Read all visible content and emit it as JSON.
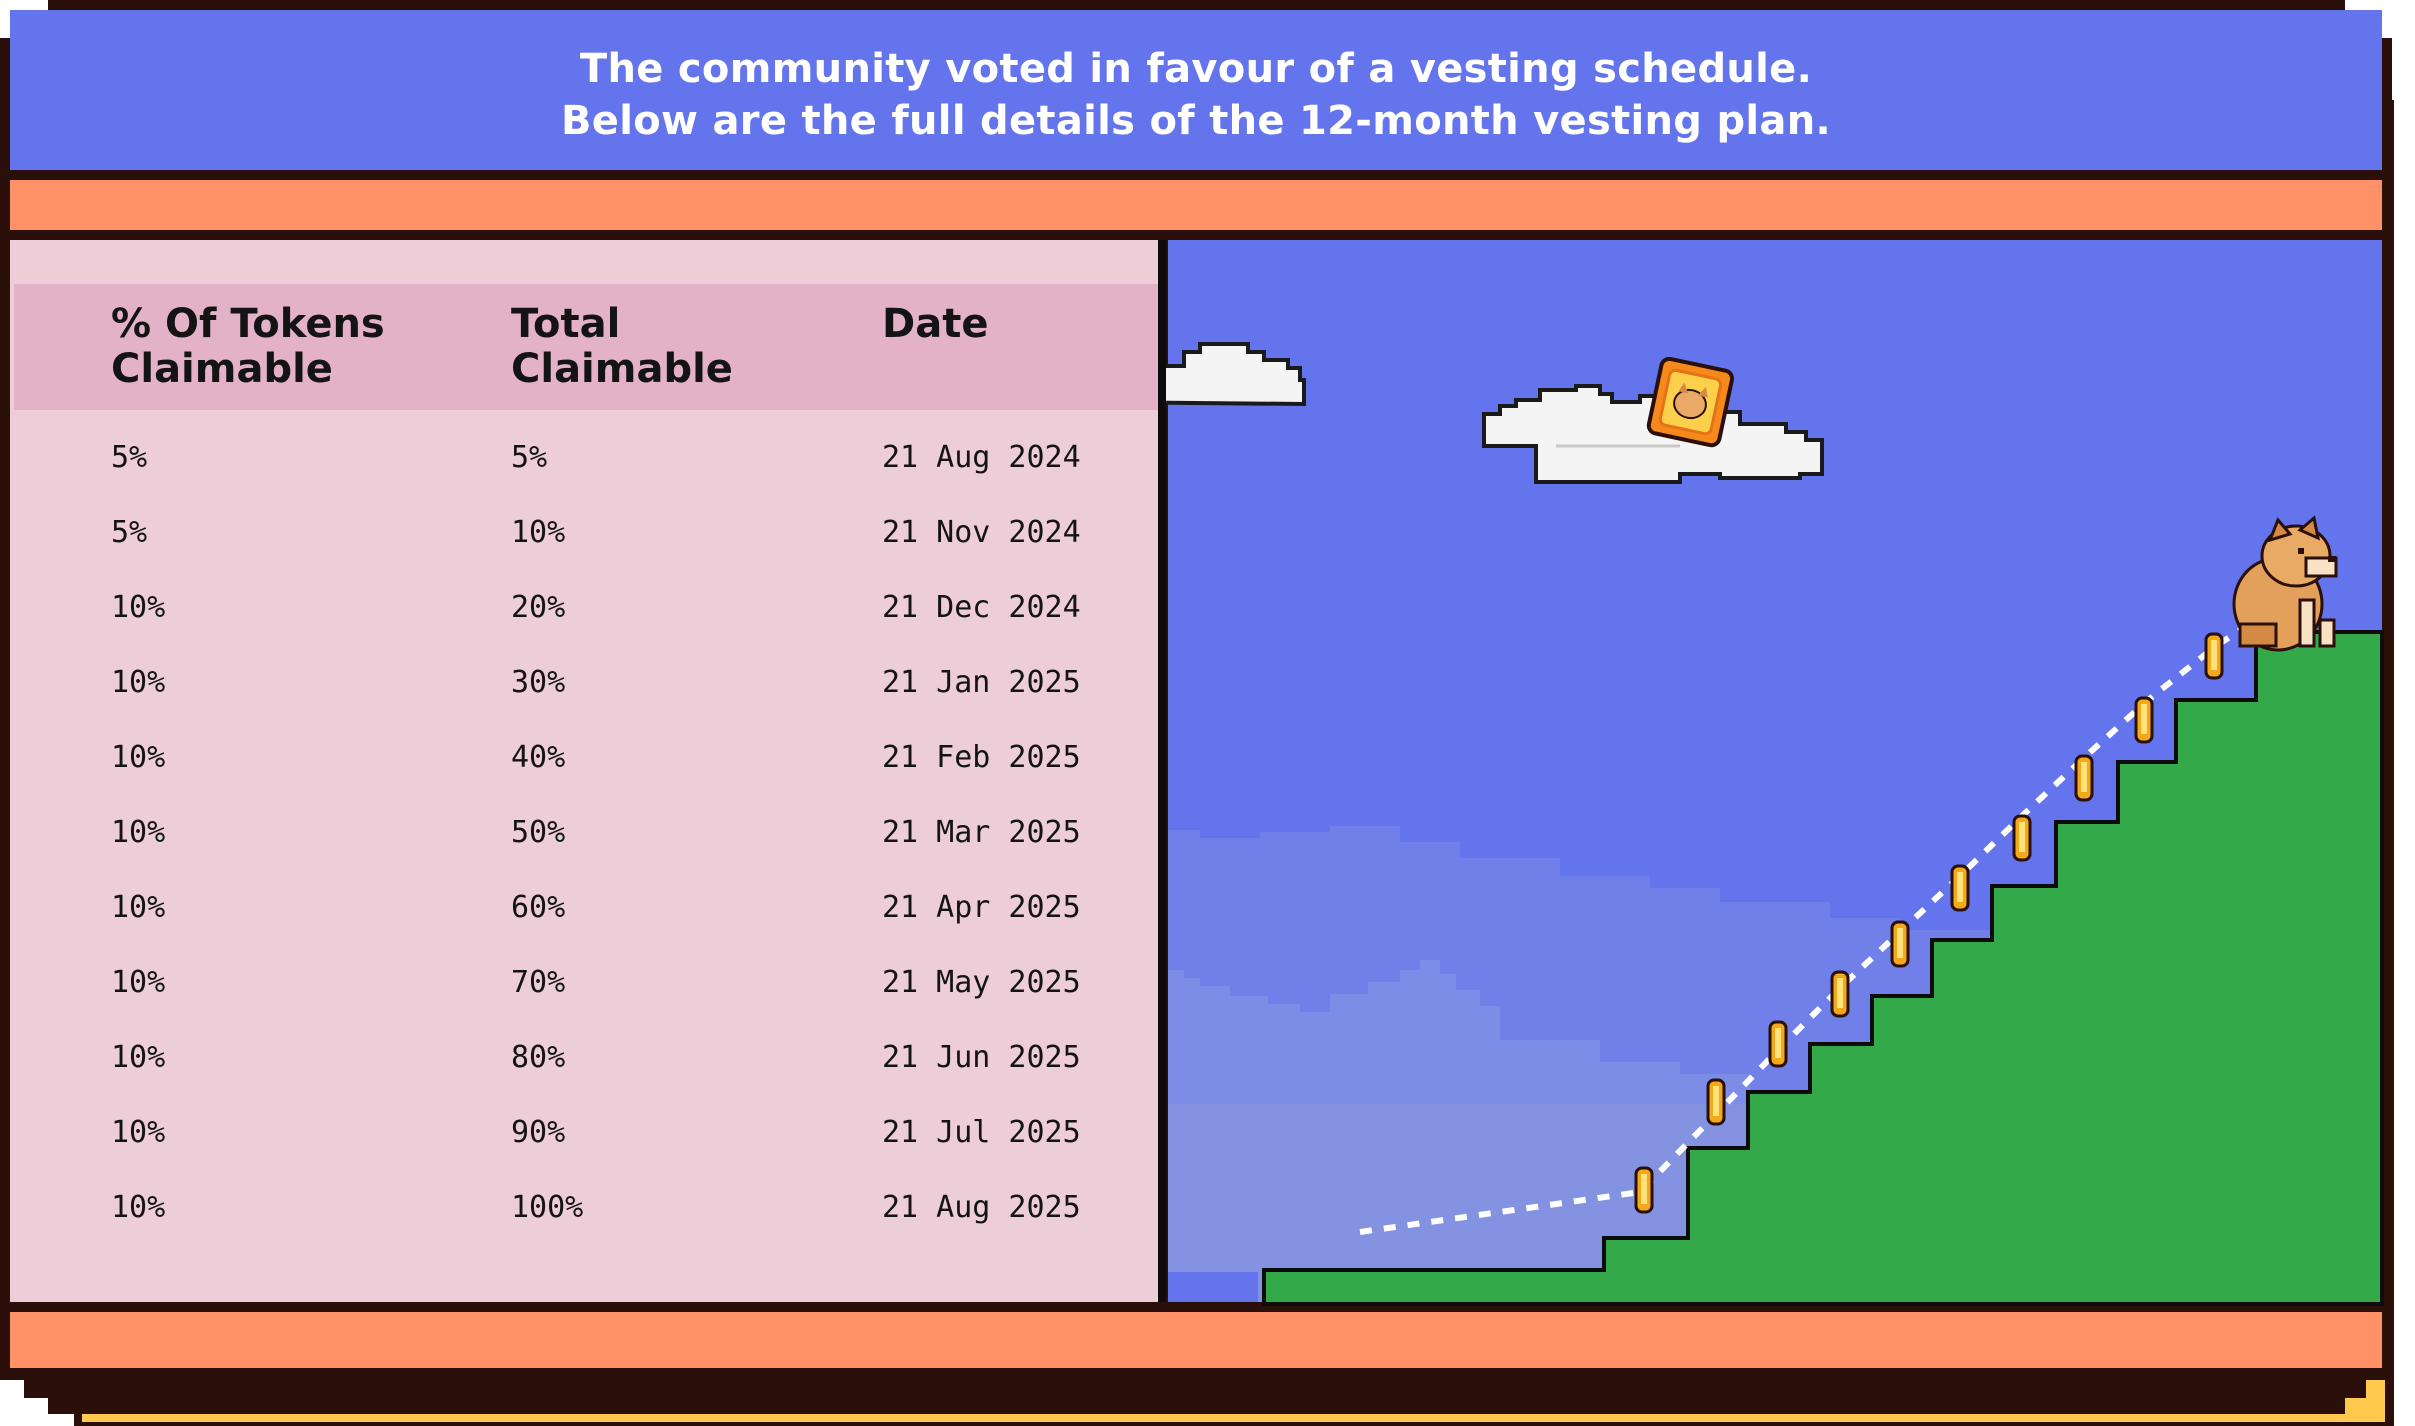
{
  "header": {
    "line1": "The community voted in favour of a vesting schedule.",
    "line2": "Below are the full details of the 12-month vesting plan."
  },
  "table": {
    "columns": [
      {
        "line1": "% Of Tokens",
        "line2": "Claimable"
      },
      {
        "line1": "Total",
        "line2": "Claimable"
      },
      {
        "line1": "Date",
        "line2": ""
      }
    ],
    "rows": [
      [
        "5%",
        "5%",
        "21 Aug 2024"
      ],
      [
        "5%",
        "10%",
        "21 Nov 2024"
      ],
      [
        "10%",
        "20%",
        "21 Dec 2024"
      ],
      [
        "10%",
        "30%",
        "21 Jan 2025"
      ],
      [
        "10%",
        "40%",
        "21 Feb 2025"
      ],
      [
        "10%",
        "50%",
        "21 Mar 2025"
      ],
      [
        "10%",
        "60%",
        "21 Apr 2025"
      ],
      [
        "10%",
        "70%",
        "21 May 2025"
      ],
      [
        "10%",
        "80%",
        "21 Jun 2025"
      ],
      [
        "10%",
        "90%",
        "21 Jul 2025"
      ],
      [
        "10%",
        "100%",
        "21 Aug 2025"
      ]
    ]
  },
  "scene": {
    "icons": [
      "cloud-icon",
      "token-badge-icon",
      "coin-icon",
      "shiba-dog-icon"
    ]
  },
  "colors": {
    "header_bg": "#6474ec",
    "band": "#fe9266",
    "table_bg": "#eccdd8",
    "table_header_bg": "#e3b2c6",
    "sky": "#6474ec",
    "hill": "#33a94a",
    "gold_shadow": "#fec94d",
    "outline": "#2a0f0a"
  }
}
